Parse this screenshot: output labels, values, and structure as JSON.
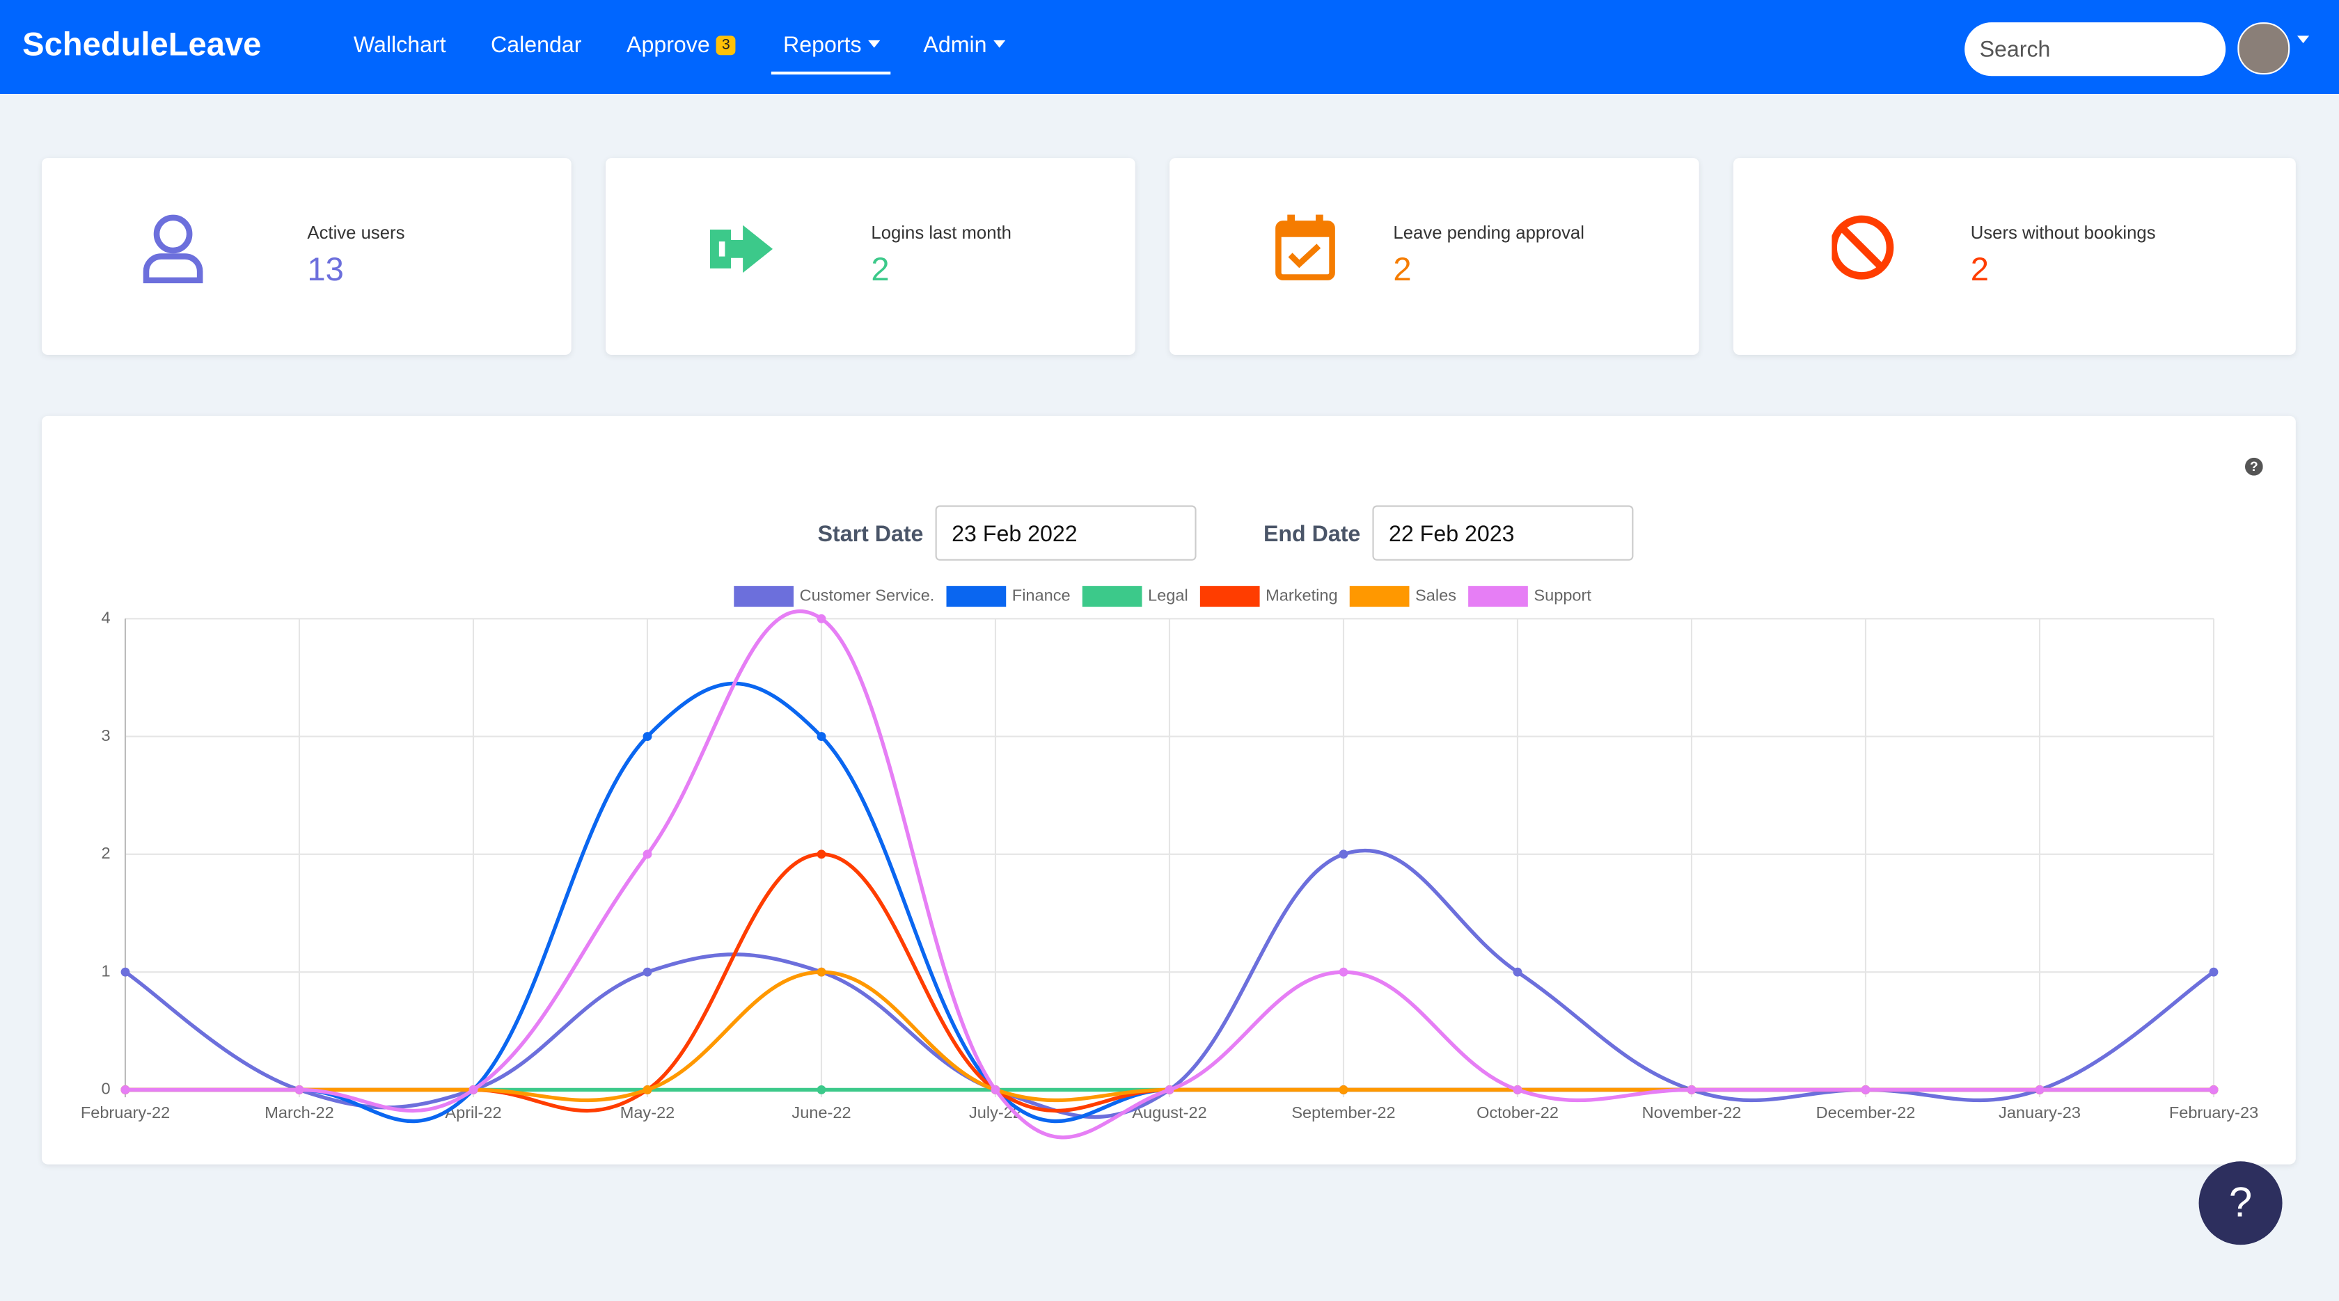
{
  "header": {
    "brand": "ScheduleLeave",
    "nav": [
      "Wallchart",
      "Calendar",
      "Approve",
      "Reports",
      "Admin"
    ],
    "approve_badge": "3",
    "search_placeholder": "Search"
  },
  "cards": [
    {
      "label": "Active users",
      "value": "13"
    },
    {
      "label": "Logins last month",
      "value": "2"
    },
    {
      "label": "Leave pending approval",
      "value": "2"
    },
    {
      "label": "Users without bookings",
      "value": "2"
    }
  ],
  "filters": {
    "start_label": "Start Date",
    "start_value": "23 Feb 2022",
    "end_label": "End Date",
    "end_value": "22 Feb 2023"
  },
  "help_button": "?",
  "chart_data": {
    "type": "line",
    "categories": [
      "February-22",
      "March-22",
      "April-22",
      "May-22",
      "June-22",
      "July-22",
      "August-22",
      "September-22",
      "October-22",
      "November-22",
      "December-22",
      "January-23",
      "February-23"
    ],
    "ylim": [
      0,
      4
    ],
    "yticks": [
      0,
      1,
      2,
      3,
      4
    ],
    "grid": true,
    "legend": "top",
    "series": [
      {
        "name": "Customer Service.",
        "color": "#6c6fdc",
        "values": [
          1,
          0,
          0,
          1,
          1,
          0,
          0,
          2,
          1,
          0,
          0,
          0,
          1
        ]
      },
      {
        "name": "Finance",
        "color": "#0a66f0",
        "values": [
          0,
          0,
          0,
          3,
          3,
          0,
          0,
          0,
          0,
          0,
          0,
          0,
          0
        ]
      },
      {
        "name": "Legal",
        "color": "#3cc98a",
        "values": [
          0,
          0,
          0,
          0,
          0,
          0,
          0,
          0,
          0,
          0,
          0,
          0,
          0
        ]
      },
      {
        "name": "Marketing",
        "color": "#ff3d00",
        "values": [
          0,
          0,
          0,
          0,
          2,
          0,
          0,
          0,
          0,
          0,
          0,
          0,
          0
        ]
      },
      {
        "name": "Sales",
        "color": "#ff9800",
        "values": [
          0,
          0,
          0,
          0,
          1,
          0,
          0,
          0,
          0,
          0,
          0,
          0,
          0
        ]
      },
      {
        "name": "Support",
        "color": "#e67ef5",
        "values": [
          0,
          0,
          0,
          2,
          4,
          0,
          0,
          1,
          0,
          0,
          0,
          0,
          0
        ]
      }
    ]
  }
}
